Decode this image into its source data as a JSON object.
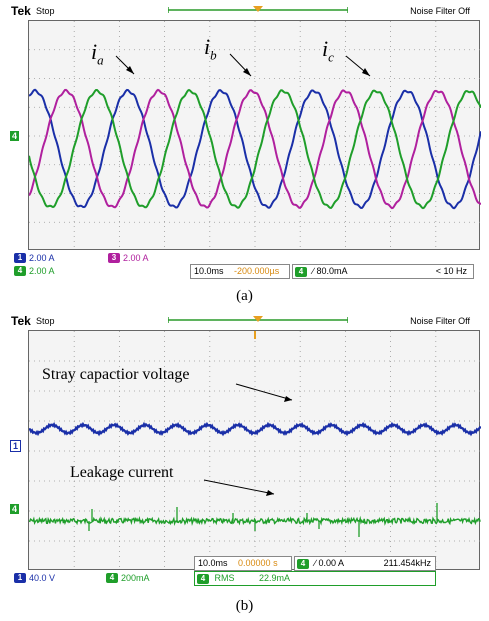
{
  "panel_a": {
    "brand": "Tek",
    "state": "Stop",
    "noise_filter": "Noise Filter Off",
    "trace_labels": [
      "i",
      "a",
      "i",
      "b",
      "i",
      "c"
    ],
    "channels": [
      {
        "num": "1",
        "scale": "2.00 A",
        "color": "#1a2fa8"
      },
      {
        "num": "3",
        "scale": "2.00 A",
        "color": "#b0209e"
      },
      {
        "num": "4",
        "scale": "2.00 A",
        "color": "#1f9e2a"
      }
    ],
    "timebase": "10.0ms",
    "position": "-200.000µs",
    "trigger_ch": "4",
    "trigger_level": "∕ 80.0mA",
    "freq": "< 10 Hz",
    "ground_marker": "4",
    "caption": "(a)"
  },
  "panel_b": {
    "brand": "Tek",
    "state": "Stop",
    "noise_filter": "Noise Filter Off",
    "label_voltage": "Stray capactior voltage",
    "label_current": "Leakage current",
    "channels": [
      {
        "num": "1",
        "scale": "40.0 V",
        "color": "#1a2fa8"
      },
      {
        "num": "4",
        "scale": "200mA",
        "color": "#1f9e2a"
      }
    ],
    "math": {
      "num": "4",
      "label": "RMS",
      "value": "22.9mA"
    },
    "timebase": "10.0ms",
    "position": "0.00000 s",
    "trigger_ch": "4",
    "trigger_level": "∕ 0.00 A",
    "freq": "211.454kHz",
    "marker1": "1",
    "marker4": "4",
    "caption": "(b)"
  },
  "colors": {
    "ch1": "#1a2fa8",
    "ch3": "#b0209e",
    "ch4": "#1f9e2a",
    "trigger": "#e8a020"
  }
}
